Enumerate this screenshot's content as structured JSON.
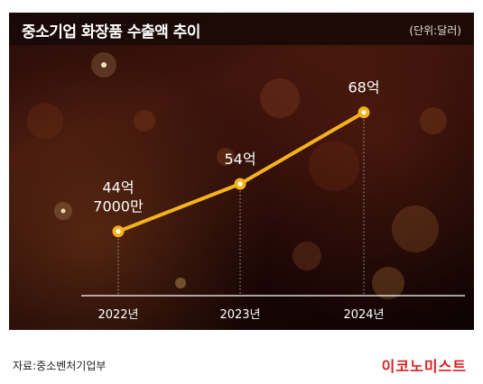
{
  "header": {
    "title": "중소기업 화장품 수출액 추이",
    "unit": "(단위:달러)"
  },
  "footer": {
    "source": "자료:중소벤처기업부",
    "brand": "이코노미스트"
  },
  "colors": {
    "line": "#f5b31b",
    "marker_fill": "#f5b31b",
    "marker_center": "#ffffff",
    "text": "#ffffff",
    "baseline": "#ffffff"
  },
  "chart_data": {
    "type": "line",
    "title": "중소기업 화장품 수출액 추이",
    "unit": "(단위:달러)",
    "categories": [
      "2022년",
      "2023년",
      "2024년"
    ],
    "values": [
      4470000000,
      5400000000,
      6800000000
    ],
    "data_labels": [
      "44억\n7000만",
      "54억",
      "68억"
    ],
    "ylim": [
      3900000000,
      7200000000
    ],
    "grid": false,
    "legend": "none"
  }
}
